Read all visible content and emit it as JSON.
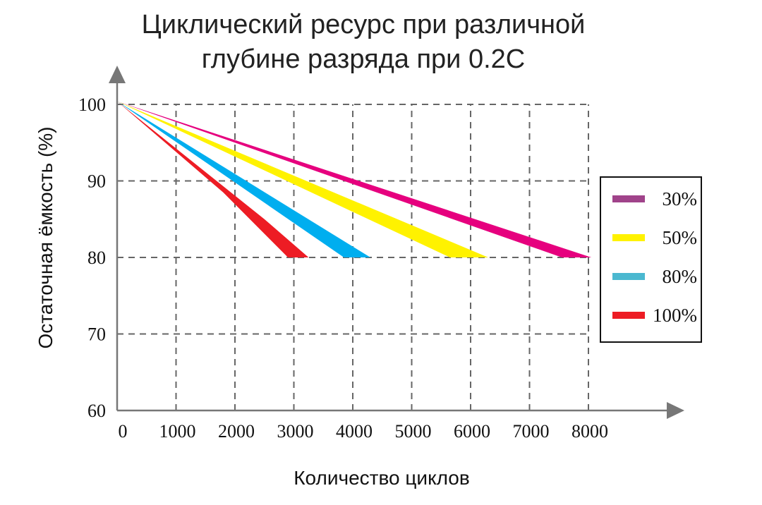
{
  "chart_data": {
    "type": "area",
    "title": [
      "Циклический ресурс при различной",
      "глубине разряда при 0.2С"
    ],
    "xlabel": "Количество циклов",
    "ylabel": "Остаточная ёмкость (%)",
    "xlim": [
      0,
      9500
    ],
    "ylim": [
      60,
      100
    ],
    "x_ticks": [
      0,
      1000,
      2000,
      3000,
      4000,
      5000,
      6000,
      7000,
      8000
    ],
    "y_ticks": [
      60,
      70,
      80,
      90,
      100
    ],
    "grid": true,
    "legend_position": "right",
    "series": [
      {
        "name": "30%",
        "color": "#E6007E",
        "legend_color": "#A0438A",
        "lower": [
          [
            0,
            100.4
          ],
          [
            7550,
            80
          ]
        ],
        "upper": [
          [
            0,
            100.4
          ],
          [
            8050,
            80
          ]
        ]
      },
      {
        "name": "50%",
        "color": "#FFF200",
        "legend_color": "#FFF200",
        "lower": [
          [
            0,
            100.4
          ],
          [
            5650,
            80
          ]
        ],
        "upper": [
          [
            0,
            100.4
          ],
          [
            6300,
            80
          ]
        ]
      },
      {
        "name": "80%",
        "color": "#00AEEF",
        "legend_color": "#4BB8D0",
        "lower": [
          [
            0,
            100.4
          ],
          [
            3850,
            80
          ]
        ],
        "upper": [
          [
            0,
            100.4
          ],
          [
            4300,
            80
          ]
        ]
      },
      {
        "name": "100%",
        "color": "#ED1C24",
        "legend_color": "#ED1C24",
        "lower": [
          [
            0,
            100.4
          ],
          [
            1800,
            88.5
          ],
          [
            2900,
            80
          ]
        ],
        "upper": [
          [
            0,
            100.4
          ],
          [
            2500,
            85
          ],
          [
            3250,
            80
          ]
        ]
      }
    ]
  }
}
